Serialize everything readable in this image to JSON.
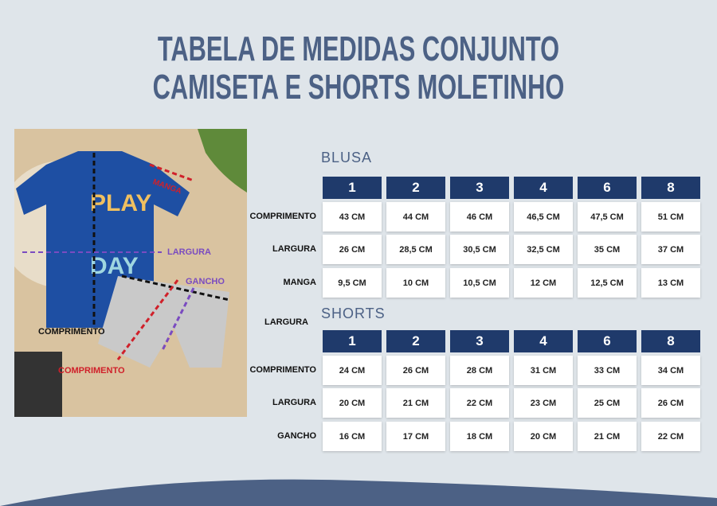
{
  "header": {
    "title": [
      "TABELA DE MEDIDAS CONJUNTO",
      "CAMISETA E SHORTS MOLETINHO"
    ]
  },
  "photo": {
    "shirt_print": [
      "PLAY",
      "DAY"
    ],
    "labels": {
      "manga": "MANGA",
      "largura": "LARGURA",
      "gancho": "GANCHO",
      "comprimento_camiseta": "COMPRIMENTO",
      "comprimento_shorts": "COMPRIMENTO"
    }
  },
  "blusa": {
    "heading": "BLUSA",
    "sizes": [
      "1",
      "2",
      "3",
      "4",
      "6",
      "8"
    ],
    "rows": [
      {
        "label": "COMPRIMENTO",
        "cells": [
          "43 CM",
          "44 CM",
          "46 CM",
          "46,5 CM",
          "47,5 CM",
          "51 CM"
        ]
      },
      {
        "label": "LARGURA",
        "cells": [
          "26 CM",
          "28,5 CM",
          "30,5 CM",
          "32,5 CM",
          "35 CM",
          "37 CM"
        ]
      },
      {
        "label": "MANGA",
        "cells": [
          "9,5 CM",
          "10 CM",
          "10,5 CM",
          "12 CM",
          "12,5 CM",
          "13 CM"
        ]
      }
    ]
  },
  "stray_label": "LARGURA",
  "shorts": {
    "heading": "SHORTS",
    "sizes": [
      "1",
      "2",
      "3",
      "4",
      "6",
      "8"
    ],
    "rows": [
      {
        "label": "COMPRIMENTO",
        "cells": [
          "24 CM",
          "26 CM",
          "28 CM",
          "31 CM",
          "33 CM",
          "34 CM"
        ]
      },
      {
        "label": "LARGURA",
        "cells": [
          "20 CM",
          "21 CM",
          "22 CM",
          "23 CM",
          "25 CM",
          "26 CM"
        ]
      },
      {
        "label": "GANCHO",
        "cells": [
          "16 CM",
          "17 CM",
          "18 CM",
          "20 CM",
          "21 CM",
          "22 CM"
        ]
      }
    ]
  }
}
